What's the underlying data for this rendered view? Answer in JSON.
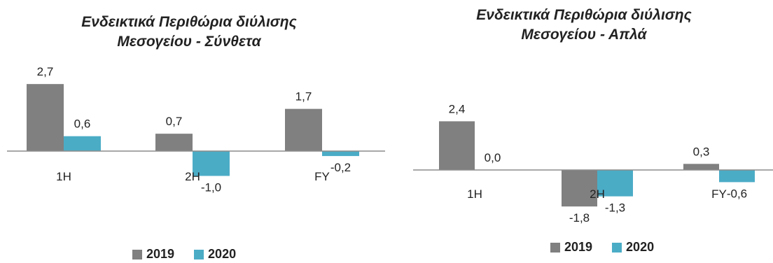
{
  "chart_data": [
    {
      "type": "bar",
      "title": [
        "Ενδεικτικά Περιθώρια διύλισης",
        "Μεσογείου - Σύνθετα"
      ],
      "categories": [
        "1H",
        "2H",
        "FY"
      ],
      "series": [
        {
          "name": "2019",
          "values": [
            2.7,
            0.7,
            1.7
          ],
          "labels": [
            "2,7",
            "0,7",
            "1,7"
          ],
          "color": "#808080"
        },
        {
          "name": "2020",
          "values": [
            0.6,
            -1.0,
            -0.2
          ],
          "labels": [
            "0,6",
            "-1,0",
            "-0,2"
          ],
          "color": "#4bacc6"
        }
      ],
      "legend": "bottom-center",
      "grid": false
    },
    {
      "type": "bar",
      "title": [
        "Ενδεικτικά Περιθώρια διύλισης",
        "Μεσογείου - Απλά"
      ],
      "categories": [
        "1H",
        "2H",
        "FY"
      ],
      "series": [
        {
          "name": "2019",
          "values": [
            2.4,
            -1.8,
            0.3
          ],
          "labels": [
            "2,4",
            "-1,8",
            "0,3"
          ],
          "color": "#808080"
        },
        {
          "name": "2020",
          "values": [
            0.0,
            -1.3,
            -0.6
          ],
          "labels": [
            "0,0",
            "-1,3",
            "-0,6"
          ],
          "color": "#4bacc6"
        }
      ],
      "legend": "bottom-center",
      "grid": false
    }
  ]
}
